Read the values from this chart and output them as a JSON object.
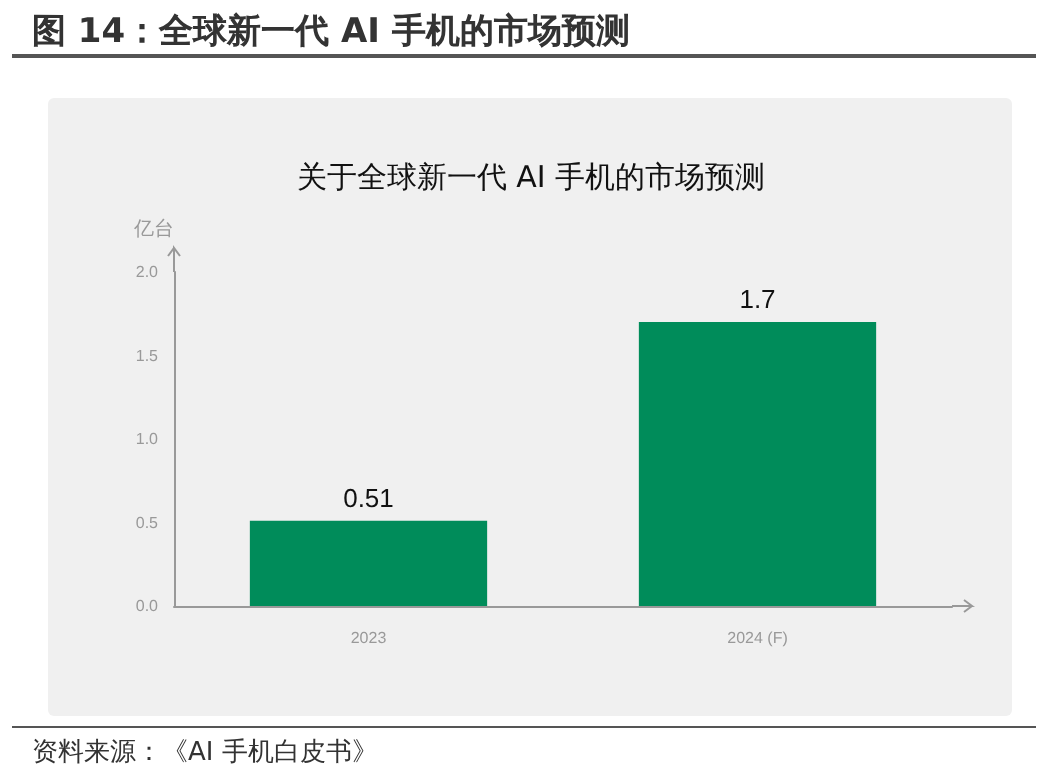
{
  "chart_data": {
    "type": "bar",
    "title": "图 14：全球新一代 AI 手机的市场预测",
    "subtitle": "关于全球新一代 AI 手机的市场预测",
    "ylabel": "亿台",
    "categories": [
      "2023",
      "2024 (F)"
    ],
    "values": [
      0.51,
      1.7
    ],
    "color": "#008c5a",
    "data_labels": true,
    "ylim": [
      0,
      2.0
    ],
    "yticks": [
      {
        "value": 0,
        "label": "0.0"
      },
      {
        "value": 0.5,
        "label": "0.5"
      },
      {
        "value": 1,
        "label": "1.0"
      },
      {
        "value": 1.5,
        "label": "1.5"
      },
      {
        "value": 2,
        "label": "2.0"
      }
    ],
    "grid": false,
    "annotations": [
      "资料来源：《AI 手机白皮书》"
    ]
  }
}
